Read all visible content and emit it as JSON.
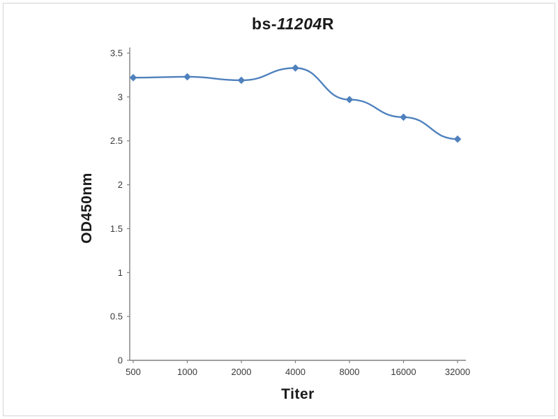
{
  "chart": {
    "title_prefix": "bs-",
    "title_italic": "11204",
    "title_suffix": "R",
    "ylabel": "OD450nm",
    "xlabel": "Titer"
  },
  "chart_data": {
    "type": "line",
    "title": "bs-11204R",
    "xlabel": "Titer",
    "ylabel": "OD450nm",
    "categories": [
      "500",
      "1000",
      "2000",
      "4000",
      "8000",
      "16000",
      "32000"
    ],
    "series": [
      {
        "name": "OD450nm",
        "values": [
          3.22,
          3.23,
          3.19,
          3.33,
          2.97,
          2.77,
          2.52
        ]
      }
    ],
    "ylim": [
      0,
      3.5
    ],
    "ytick_step": 0.5,
    "yticks": [
      "0",
      "0.5",
      "1",
      "1.5",
      "2",
      "2.5",
      "3",
      "3.5"
    ],
    "line_color": "#4f81bd",
    "axis_color": "#808080",
    "marker": "diamond",
    "grid": false,
    "legend": "none"
  }
}
